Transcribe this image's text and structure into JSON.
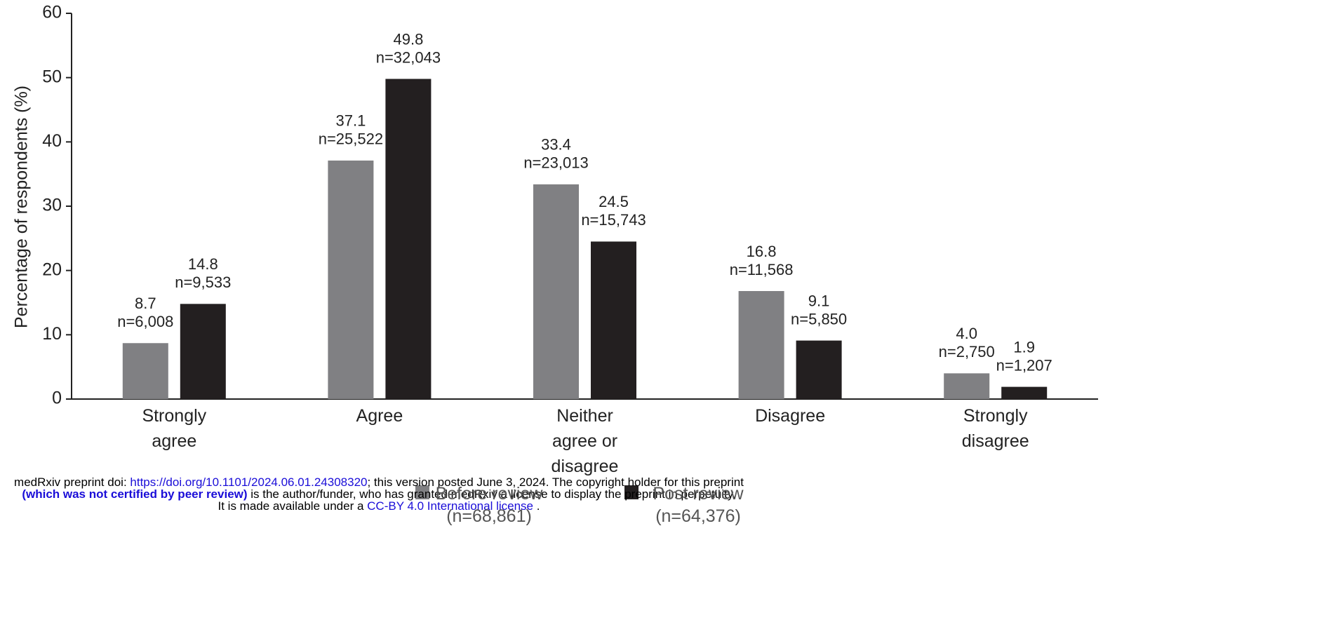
{
  "chart_data": {
    "type": "bar",
    "y_label": "Percentage of respondents (%)",
    "categories": [
      "Strongly agree",
      "Agree",
      "Neither agree or disagree",
      "Disagree",
      "Strongly disagree"
    ],
    "series": [
      {
        "name": "Before review (n=68,861)",
        "color": "#808083",
        "values": [
          8.7,
          37.1,
          33.4,
          16.8,
          4.0
        ],
        "value_labels": [
          "8.7",
          "37.1",
          "33.4",
          "16.8",
          "4.0"
        ],
        "counts": [
          "n=6,008",
          "n=25,522",
          "n=23,013",
          "n=11,568",
          "n=2,750"
        ]
      },
      {
        "name": "Post review (n=64,376)",
        "color": "#231f20",
        "values": [
          14.8,
          49.8,
          24.5,
          9.1,
          1.9
        ],
        "value_labels": [
          "14.8",
          "49.8",
          "24.5",
          "9.1",
          "1.9"
        ],
        "counts": [
          "n=9,533",
          "n=32,043",
          "n=15,743",
          "n=5,850",
          "n=1,207"
        ]
      }
    ],
    "ylim": [
      0,
      60
    ],
    "yticks": [
      0,
      10,
      20,
      30,
      40,
      50,
      60
    ],
    "grid": false
  },
  "footer": {
    "line1": [
      "medRxiv preprint doi: ",
      "https://doi.org/10.1101/2024.06.01.24308320",
      "; this version posted June 3, 2024. The copyright holder for this preprint"
    ],
    "line2": [
      "(which was not certified by peer review)",
      " is the author/funder, who has granted medRxiv a license to display the preprint in perpetuity."
    ],
    "line3": [
      "It is made available under a ",
      "CC-BY 4.0 International license",
      " ."
    ]
  }
}
